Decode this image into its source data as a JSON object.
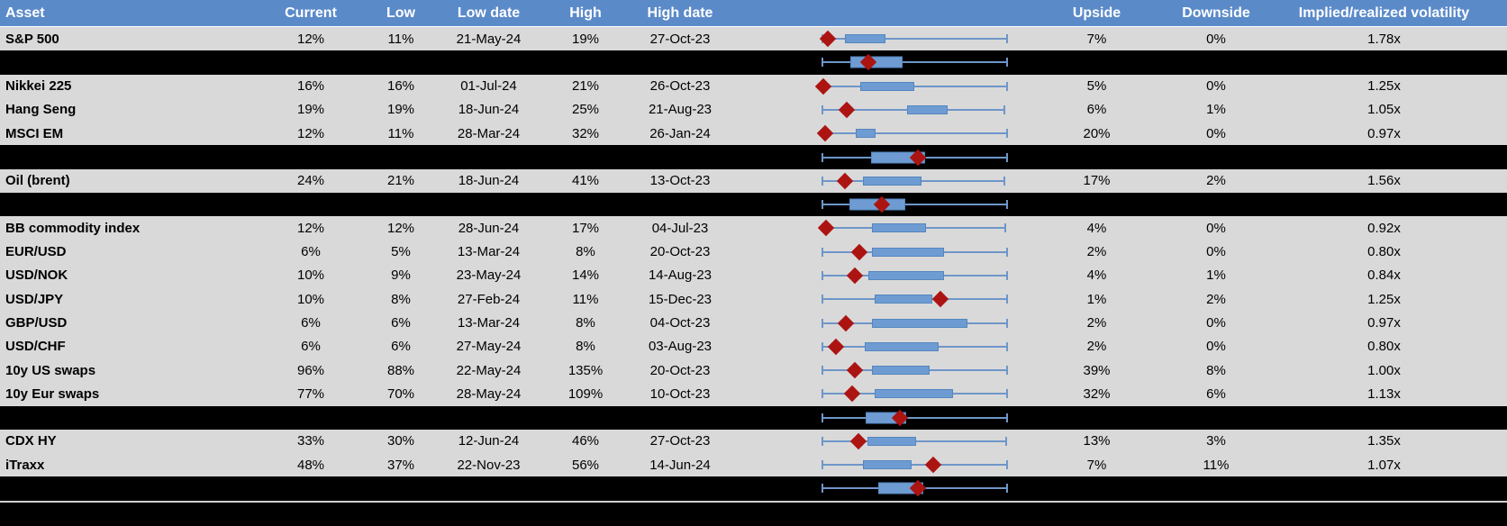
{
  "colors": {
    "header_bg": "#5B8AC9",
    "header_text": "#FFFFFF",
    "row_bg": "#D9D9D9",
    "separator_bg": "#000000",
    "box_fill": "#6E9CD2",
    "box_border": "#5586BF",
    "whisker": "#6E96C9",
    "diamond_marker": "#AC1412"
  },
  "table": {
    "columns": [
      "Asset",
      "Current",
      "Low",
      "Low date",
      "High",
      "High date",
      "",
      "Upside",
      "Downside",
      "Implied/realized volatility"
    ]
  },
  "rows": [
    {
      "type": "data",
      "asset": "S&P 500",
      "current": "12%",
      "low": "11%",
      "low_date": "21-May-24",
      "high": "19%",
      "high_date": "27-Oct-23",
      "upside": "7%",
      "downside": "0%",
      "implied": "1.78x",
      "box": {
        "lo": 0,
        "q1": 12,
        "q3": 34,
        "hi": 100,
        "m": 3
      }
    },
    {
      "type": "sep",
      "box": {
        "lo": 0,
        "q1": 15,
        "q3": 43.4,
        "hi": 100,
        "m": 25
      }
    },
    {
      "type": "data",
      "asset": "Nikkei 225",
      "current": "16%",
      "low": "16%",
      "low_date": "01-Jul-24",
      "high": "21%",
      "high_date": "26-Oct-23",
      "upside": "5%",
      "downside": "0%",
      "implied": "1.25x",
      "box": {
        "lo": 0,
        "q1": 20.5,
        "q3": 50,
        "hi": 100,
        "m": 0.5
      }
    },
    {
      "type": "data",
      "asset": "Hang Seng",
      "current": "19%",
      "low": "19%",
      "low_date": "18-Jun-24",
      "high": "25%",
      "high_date": "21-Aug-23",
      "upside": "6%",
      "downside": "1%",
      "implied": "1.05x",
      "box": {
        "lo": 0,
        "q1": 46,
        "q3": 68,
        "hi": 98.5,
        "m": 13
      }
    },
    {
      "type": "data",
      "asset": "MSCI EM",
      "current": "12%",
      "low": "11%",
      "low_date": "28-Mar-24",
      "high": "32%",
      "high_date": "26-Jan-24",
      "upside": "20%",
      "downside": "0%",
      "implied": "0.97x",
      "box": {
        "lo": 0,
        "q1": 18,
        "q3": 29,
        "hi": 100,
        "m": 1.5
      }
    },
    {
      "type": "sep",
      "box": {
        "lo": 0,
        "q1": 26.3,
        "q3": 55.6,
        "hi": 100,
        "m": 51.7
      }
    },
    {
      "type": "data",
      "asset": "Oil (brent)",
      "current": "24%",
      "low": "21%",
      "low_date": "18-Jun-24",
      "high": "41%",
      "high_date": "13-Oct-23",
      "upside": "17%",
      "downside": "2%",
      "implied": "1.56x",
      "box": {
        "lo": 0,
        "q1": 22,
        "q3": 53.7,
        "hi": 98.5,
        "m": 12.2
      }
    },
    {
      "type": "sep",
      "box": {
        "lo": 0,
        "q1": 14.6,
        "q3": 44.9,
        "hi": 100,
        "m": 32.2
      }
    },
    {
      "type": "data",
      "asset": "BB commodity index",
      "current": "12%",
      "low": "12%",
      "low_date": "28-Jun-24",
      "high": "17%",
      "high_date": "04-Jul-23",
      "upside": "4%",
      "downside": "0%",
      "implied": "0.92x",
      "box": {
        "lo": 0,
        "q1": 26.8,
        "q3": 56.1,
        "hi": 99,
        "m": 2
      }
    },
    {
      "type": "data",
      "asset": "EUR/USD",
      "current": "6%",
      "low": "5%",
      "low_date": "13-Mar-24",
      "high": "8%",
      "high_date": "20-Oct-23",
      "upside": "2%",
      "downside": "0%",
      "implied": "0.80x",
      "box": {
        "lo": 0,
        "q1": 26.8,
        "q3": 65.9,
        "hi": 100,
        "m": 20
      }
    },
    {
      "type": "data",
      "asset": "USD/NOK",
      "current": "10%",
      "low": "9%",
      "low_date": "23-May-24",
      "high": "14%",
      "high_date": "14-Aug-23",
      "upside": "4%",
      "downside": "1%",
      "implied": "0.84x",
      "box": {
        "lo": 0,
        "q1": 24.9,
        "q3": 65.9,
        "hi": 100,
        "m": 17.6
      }
    },
    {
      "type": "data",
      "asset": "USD/JPY",
      "current": "10%",
      "low": "8%",
      "low_date": "27-Feb-24",
      "high": "11%",
      "high_date": "15-Dec-23",
      "upside": "1%",
      "downside": "2%",
      "implied": "1.25x",
      "box": {
        "lo": 0,
        "q1": 28.3,
        "q3": 59.5,
        "hi": 100,
        "m": 63.9
      }
    },
    {
      "type": "data",
      "asset": "GBP/USD",
      "current": "6%",
      "low": "6%",
      "low_date": "13-Mar-24",
      "high": "8%",
      "high_date": "04-Oct-23",
      "upside": "2%",
      "downside": "0%",
      "implied": "0.97x",
      "box": {
        "lo": 0,
        "q1": 26.8,
        "q3": 78.5,
        "hi": 100,
        "m": 12.7
      }
    },
    {
      "type": "data",
      "asset": "USD/CHF",
      "current": "6%",
      "low": "6%",
      "low_date": "27-May-24",
      "high": "8%",
      "high_date": "03-Aug-23",
      "upside": "2%",
      "downside": "0%",
      "implied": "0.80x",
      "box": {
        "lo": 0,
        "q1": 22.9,
        "q3": 62.9,
        "hi": 100,
        "m": 7.3
      }
    },
    {
      "type": "data",
      "asset": "10y US swaps",
      "current": "96%",
      "low": "88%",
      "low_date": "22-May-24",
      "high": "135%",
      "high_date": "20-Oct-23",
      "upside": "39%",
      "downside": "8%",
      "implied": "1.00x",
      "box": {
        "lo": 0,
        "q1": 26.8,
        "q3": 58,
        "hi": 100,
        "m": 17.6
      }
    },
    {
      "type": "data",
      "asset": "10y Eur swaps",
      "current": "77%",
      "low": "70%",
      "low_date": "28-May-24",
      "high": "109%",
      "high_date": "10-Oct-23",
      "upside": "32%",
      "downside": "6%",
      "implied": "1.13x",
      "box": {
        "lo": 0,
        "q1": 28.3,
        "q3": 70.7,
        "hi": 100,
        "m": 16.1
      }
    },
    {
      "type": "sep",
      "box": {
        "lo": 0,
        "q1": 23.4,
        "q3": 45.4,
        "hi": 100,
        "m": 42
      }
    },
    {
      "type": "data",
      "asset": "CDX HY",
      "current": "33%",
      "low": "30%",
      "low_date": "12-Jun-24",
      "high": "46%",
      "high_date": "27-Oct-23",
      "upside": "13%",
      "downside": "3%",
      "implied": "1.35x",
      "box": {
        "lo": 0,
        "q1": 24.4,
        "q3": 50.7,
        "hi": 99.5,
        "m": 19.5
      }
    },
    {
      "type": "data",
      "asset": "iTraxx",
      "current": "48%",
      "low": "37%",
      "low_date": "22-Nov-23",
      "high": "56%",
      "high_date": "14-Jun-24",
      "upside": "7%",
      "downside": "11%",
      "implied": "1.07x",
      "box": {
        "lo": 0,
        "q1": 22,
        "q3": 48.3,
        "hi": 100,
        "m": 60
      }
    },
    {
      "type": "sep",
      "box": {
        "lo": 0,
        "q1": 30.2,
        "q3": 54.6,
        "hi": 100,
        "m": 51.7
      }
    },
    {
      "type": "filler"
    }
  ],
  "chart_data": {
    "type": "boxplot",
    "orientation": "horizontal",
    "x_scale": "normalized 0-100 position within each row's plotted low-high whisker span (no axis labels shown in image)",
    "marker_meaning": "red diamond = current level",
    "series": [
      {
        "name": "S&P 500",
        "whisker_low": 0,
        "q1": 12,
        "q3": 34,
        "whisker_high": 100,
        "marker": 3
      },
      {
        "name": "(unlabeled aggregate 1)",
        "whisker_low": 0,
        "q1": 15,
        "q3": 43.4,
        "whisker_high": 100,
        "marker": 25
      },
      {
        "name": "Nikkei 225",
        "whisker_low": 0,
        "q1": 20.5,
        "q3": 50,
        "whisker_high": 100,
        "marker": 0.5
      },
      {
        "name": "Hang Seng",
        "whisker_low": 0,
        "q1": 46,
        "q3": 68,
        "whisker_high": 98.5,
        "marker": 13
      },
      {
        "name": "MSCI EM",
        "whisker_low": 0,
        "q1": 18,
        "q3": 29,
        "whisker_high": 100,
        "marker": 1.5
      },
      {
        "name": "(unlabeled aggregate 2)",
        "whisker_low": 0,
        "q1": 26.3,
        "q3": 55.6,
        "whisker_high": 100,
        "marker": 51.7
      },
      {
        "name": "Oil (brent)",
        "whisker_low": 0,
        "q1": 22,
        "q3": 53.7,
        "whisker_high": 98.5,
        "marker": 12.2
      },
      {
        "name": "(unlabeled aggregate 3)",
        "whisker_low": 0,
        "q1": 14.6,
        "q3": 44.9,
        "whisker_high": 100,
        "marker": 32.2
      },
      {
        "name": "BB commodity index",
        "whisker_low": 0,
        "q1": 26.8,
        "q3": 56.1,
        "whisker_high": 99,
        "marker": 2
      },
      {
        "name": "EUR/USD",
        "whisker_low": 0,
        "q1": 26.8,
        "q3": 65.9,
        "whisker_high": 100,
        "marker": 20
      },
      {
        "name": "USD/NOK",
        "whisker_low": 0,
        "q1": 24.9,
        "q3": 65.9,
        "whisker_high": 100,
        "marker": 17.6
      },
      {
        "name": "USD/JPY",
        "whisker_low": 0,
        "q1": 28.3,
        "q3": 59.5,
        "whisker_high": 100,
        "marker": 63.9
      },
      {
        "name": "GBP/USD",
        "whisker_low": 0,
        "q1": 26.8,
        "q3": 78.5,
        "whisker_high": 100,
        "marker": 12.7
      },
      {
        "name": "USD/CHF",
        "whisker_low": 0,
        "q1": 22.9,
        "q3": 62.9,
        "whisker_high": 100,
        "marker": 7.3
      },
      {
        "name": "10y US swaps",
        "whisker_low": 0,
        "q1": 26.8,
        "q3": 58,
        "whisker_high": 100,
        "marker": 17.6
      },
      {
        "name": "10y Eur swaps",
        "whisker_low": 0,
        "q1": 28.3,
        "q3": 70.7,
        "whisker_high": 100,
        "marker": 16.1
      },
      {
        "name": "(unlabeled aggregate 4)",
        "whisker_low": 0,
        "q1": 23.4,
        "q3": 45.4,
        "whisker_high": 100,
        "marker": 42
      },
      {
        "name": "CDX HY",
        "whisker_low": 0,
        "q1": 24.4,
        "q3": 50.7,
        "whisker_high": 99.5,
        "marker": 19.5
      },
      {
        "name": "iTraxx",
        "whisker_low": 0,
        "q1": 22,
        "q3": 48.3,
        "whisker_high": 100,
        "marker": 60
      },
      {
        "name": "(unlabeled aggregate 5)",
        "whisker_low": 0,
        "q1": 30.2,
        "q3": 54.6,
        "whisker_high": 100,
        "marker": 51.7
      }
    ]
  }
}
